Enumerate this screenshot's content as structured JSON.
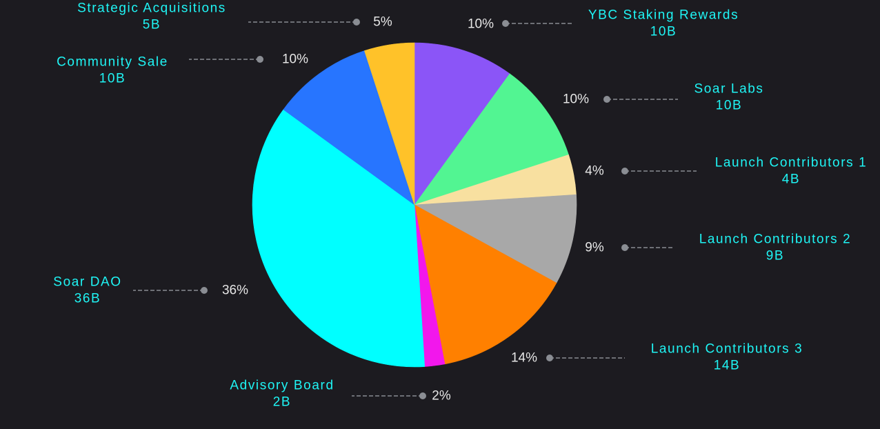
{
  "chart_data": {
    "type": "pie",
    "start_angle_deg": 0,
    "direction": "clockwise",
    "slices": [
      {
        "name": "YBC Staking Rewards",
        "value": 10,
        "value_label": "10B",
        "percent_label": "10%",
        "color": "#8b55f7"
      },
      {
        "name": "Soar Labs",
        "value": 10,
        "value_label": "10B",
        "percent_label": "10%",
        "color": "#52f592"
      },
      {
        "name": "Launch Contributors 1",
        "value": 4,
        "value_label": "4B",
        "percent_label": "4%",
        "color": "#f8e0a0"
      },
      {
        "name": "Launch Contributors 2",
        "value": 9,
        "value_label": "9B",
        "percent_label": "9%",
        "color": "#a8a8a8"
      },
      {
        "name": "Launch Contributors 3",
        "value": 14,
        "value_label": "14B",
        "percent_label": "14%",
        "color": "#ff8000"
      },
      {
        "name": "Advisory Board",
        "value": 2,
        "value_label": "2B",
        "percent_label": "2%",
        "color": "#f217ec"
      },
      {
        "name": "Soar DAO",
        "value": 36,
        "value_label": "36B",
        "percent_label": "36%",
        "color": "#00ffff"
      },
      {
        "name": "Community Sale",
        "value": 10,
        "value_label": "10B",
        "percent_label": "10%",
        "color": "#2775ff"
      },
      {
        "name": "Strategic Acquisitions",
        "value": 5,
        "value_label": "5B",
        "percent_label": "5%",
        "color": "#ffc229"
      }
    ]
  },
  "style": {
    "background": "#1c1b20",
    "label_color": "#1ff5f5",
    "percent_color": "#e6e6e6",
    "leader_color": "#8a8d93"
  }
}
